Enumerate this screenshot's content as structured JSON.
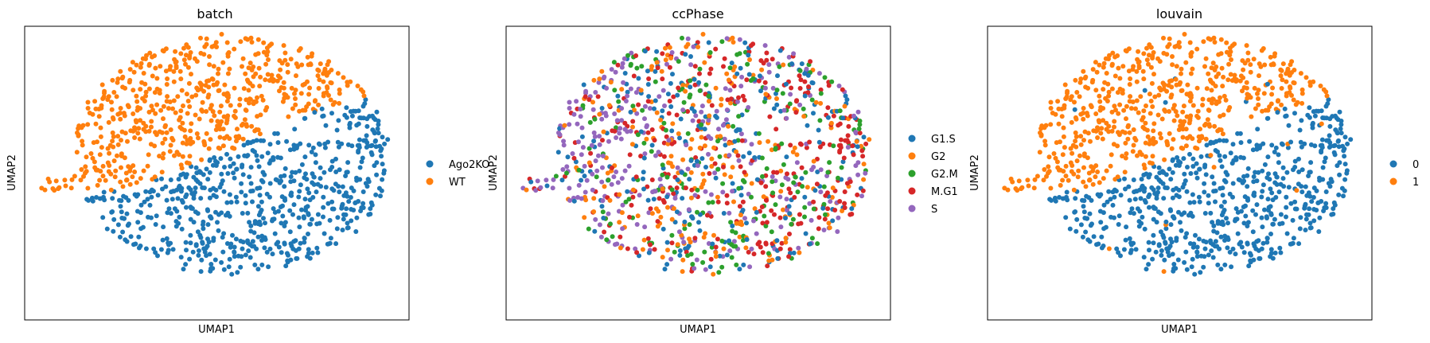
{
  "colors": {
    "blue": "#1f77b4",
    "orange": "#ff7f0e",
    "green": "#2ca02c",
    "red": "#d62728",
    "purple": "#9467bd"
  },
  "chart_data": [
    {
      "type": "scatter",
      "title": "batch",
      "xlabel": "UMAP1",
      "ylabel": "UMAP2",
      "grid": false,
      "ticks": false,
      "legend_position": "right",
      "legend": [
        {
          "label": "Ago2KO",
          "color": "#1f77b4"
        },
        {
          "label": "WT",
          "color": "#ff7f0e"
        }
      ],
      "layout_pattern": "orange-top-blue-bottom"
    },
    {
      "type": "scatter",
      "title": "ccPhase",
      "xlabel": "UMAP1",
      "ylabel": "UMAP2",
      "grid": false,
      "ticks": false,
      "legend_position": "right",
      "legend": [
        {
          "label": "G1.S",
          "color": "#1f77b4"
        },
        {
          "label": "G2",
          "color": "#ff7f0e"
        },
        {
          "label": "G2.M",
          "color": "#2ca02c"
        },
        {
          "label": "M.G1",
          "color": "#d62728"
        },
        {
          "label": "S",
          "color": "#9467bd"
        }
      ],
      "layout_pattern": "mixed"
    },
    {
      "type": "scatter",
      "title": "louvain",
      "xlabel": "UMAP1",
      "ylabel": "UMAP2",
      "grid": false,
      "ticks": false,
      "legend_position": "right",
      "legend": [
        {
          "label": "0",
          "color": "#1f77b4"
        },
        {
          "label": "1",
          "color": "#ff7f0e"
        }
      ],
      "layout_pattern": "orange-top-blue-bottom"
    }
  ]
}
